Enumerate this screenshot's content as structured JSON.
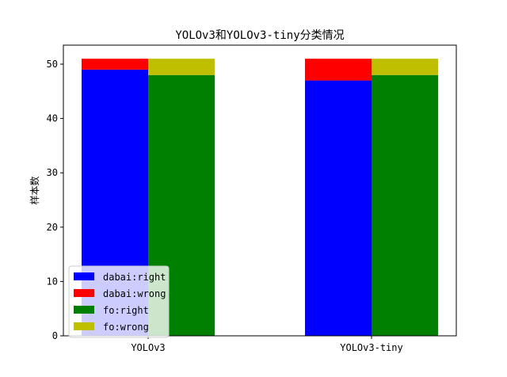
{
  "chart_data": {
    "type": "bar",
    "stacked": true,
    "title": "YOLOv3和YOLOv3-tiny分类情况",
    "xlabel": "",
    "ylabel": "样本数",
    "categories": [
      "YOLOv3",
      "YOLOv3-tiny"
    ],
    "ylim": [
      0,
      53.5
    ],
    "yticks": [
      0,
      10,
      20,
      30,
      40,
      50
    ],
    "grid": false,
    "legend_position": "lower-left",
    "groups": [
      {
        "name": "dabai",
        "series": [
          {
            "name": "dabai:right",
            "color": "#0000ff",
            "values": [
              49,
              47
            ]
          },
          {
            "name": "dabai:wrong",
            "color": "#ff0000",
            "values": [
              2,
              4
            ]
          }
        ]
      },
      {
        "name": "fo",
        "series": [
          {
            "name": "fo:right",
            "color": "#008000",
            "values": [
              48,
              48
            ]
          },
          {
            "name": "fo:wrong",
            "color": "#bfbf00",
            "values": [
              3,
              3
            ]
          }
        ]
      }
    ],
    "legend": [
      "dabai:right",
      "dabai:wrong",
      "fo:right",
      "fo:wrong"
    ]
  }
}
